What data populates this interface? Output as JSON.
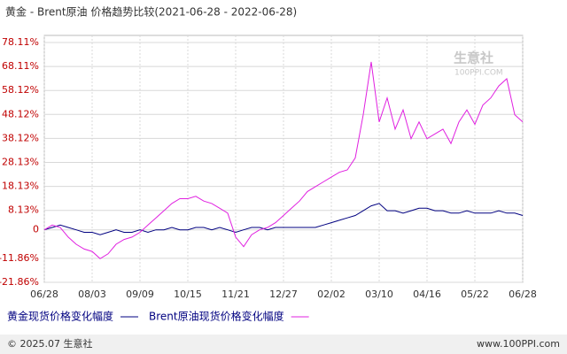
{
  "chart_data": {
    "type": "line",
    "title": "黄金 - Brent原油 价格趋势比较(2021-06-28 - 2022-06-28)",
    "watermark": "生意社",
    "watermark_url": "100PPI.COM",
    "categories": [
      "06/28",
      null,
      null,
      null,
      null,
      null,
      "08/03",
      null,
      null,
      null,
      null,
      null,
      "09/09",
      null,
      null,
      null,
      null,
      null,
      "10/15",
      null,
      null,
      null,
      null,
      null,
      "11/21",
      null,
      null,
      null,
      null,
      null,
      "12/27",
      null,
      null,
      null,
      null,
      null,
      "02/02",
      null,
      null,
      null,
      null,
      null,
      "03/10",
      null,
      null,
      null,
      null,
      null,
      "04/16",
      null,
      null,
      null,
      null,
      null,
      "05/22",
      null,
      null,
      null,
      null,
      null,
      "06/28"
    ],
    "series": [
      {
        "name": "黄金现货价格变化幅度",
        "color": "#000080",
        "values": [
          0,
          1,
          2,
          1,
          0,
          -1,
          -1,
          -2,
          -1,
          0,
          -1,
          -1,
          0,
          -1,
          0,
          0,
          1,
          0,
          0,
          1,
          1,
          0,
          1,
          0,
          -1,
          0,
          1,
          1,
          0,
          1,
          1,
          1,
          1,
          1,
          1,
          2,
          3,
          4,
          5,
          6,
          8,
          10,
          11,
          8,
          8,
          7,
          8,
          9,
          9,
          8,
          8,
          7,
          7,
          8,
          7,
          7,
          7,
          8,
          7,
          7,
          6
        ]
      },
      {
        "name": "Brent原油现货价格变化幅度",
        "color": "#e020e0",
        "values": [
          0,
          2,
          1,
          -3,
          -6,
          -8,
          -9,
          -12,
          -10,
          -6,
          -4,
          -3,
          -1,
          2,
          5,
          8,
          11,
          13,
          13,
          14,
          12,
          11,
          9,
          7,
          -3,
          -7,
          -2,
          0,
          1,
          3,
          6,
          9,
          12,
          16,
          18,
          20,
          22,
          24,
          25,
          30,
          48,
          70,
          45,
          55,
          42,
          50,
          38,
          45,
          38,
          40,
          42,
          36,
          45,
          50,
          44,
          52,
          55,
          60,
          63,
          48,
          45
        ]
      }
    ],
    "ylim": [
      -21.86,
      78.11
    ],
    "yticks": [
      {
        "value": 78.11,
        "label": "78.11%"
      },
      {
        "value": 68.11,
        "label": "68.11%"
      },
      {
        "value": 58.12,
        "label": "58.12%"
      },
      {
        "value": 48.12,
        "label": "48.12%"
      },
      {
        "value": 38.12,
        "label": "38.12%"
      },
      {
        "value": 28.13,
        "label": "28.13%"
      },
      {
        "value": 18.13,
        "label": "18.13%"
      },
      {
        "value": 8.13,
        "label": "8.13%"
      },
      0,
      {
        "value": -11.86,
        "label": "-11.86%"
      },
      {
        "value": -21.86,
        "label": "-21.86%"
      }
    ],
    "grid": true,
    "footer_left": "© 2025.07 生意社",
    "footer_right": "www.100PPI.com"
  }
}
